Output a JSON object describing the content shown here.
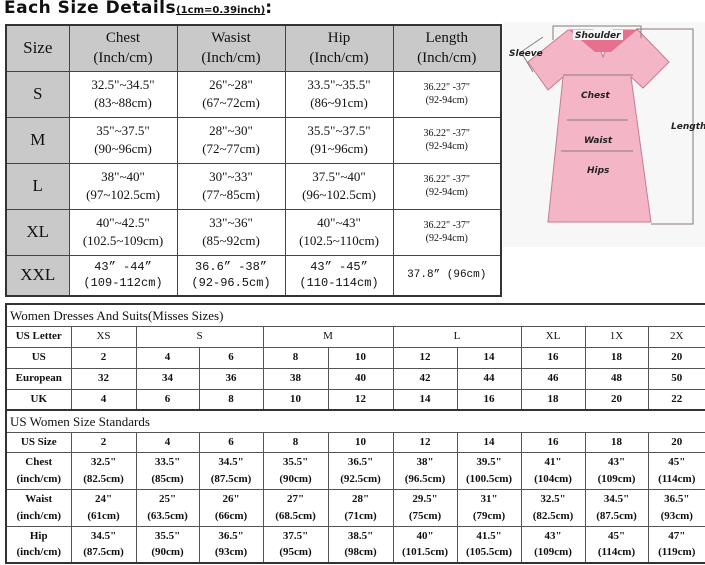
{
  "title": {
    "main": "Each Size Details",
    "sub": "(1cm=0.39inch)",
    "colon": ":"
  },
  "size_table": {
    "headers": [
      "Size",
      "Chest\n(Inch/cm)",
      "Wasist\n(Inch/cm)",
      "Hip\n(Inch/cm)",
      "Length\n(Inch/cm)"
    ],
    "rows": [
      {
        "size": "S",
        "chest": "32.5\"~34.5\"\n(83~88cm)",
        "waist": "26\"~28\"\n(67~72cm)",
        "hip": "33.5\"~35.5\"\n(86~91cm)",
        "length": "36.22\" -37\"\n(92-94cm)"
      },
      {
        "size": "M",
        "chest": "35\"~37.5\"\n(90~96cm)",
        "waist": "28\"~30\"\n(72~77cm)",
        "hip": "35.5\"~37.5\"\n(91~96cm)",
        "length": "36.22\" -37\"\n(92-94cm)"
      },
      {
        "size": "L",
        "chest": "38\"~40\"\n(97~102.5cm)",
        "waist": "30\"~33\"\n(77~85cm)",
        "hip": "37.5\"~40\"\n(96~102.5cm)",
        "length": "36.22\" -37\"\n(92-94cm)"
      },
      {
        "size": "XL",
        "chest": "40\"~42.5\"\n(102.5~109cm)",
        "waist": "33\"~36\"\n(85~92cm)",
        "hip": "40\"~43\"\n(102.5~110cm)",
        "length": "36.22\" -37\"\n(92-94cm)"
      },
      {
        "size": "XXL",
        "chest": "43” -44”\n(109-112cm)",
        "waist": "36.6” -38”\n(92-96.5cm)",
        "hip": "43” -45”\n(110-114cm)",
        "length": "37.8” (96cm)"
      }
    ]
  },
  "diagram": {
    "labels": {
      "shoulder": "Shoulder",
      "sleeve": "Sleeve",
      "chest": "Chest",
      "waist": "Waist",
      "hips": "Hips",
      "length": "Length"
    },
    "dress_color": "#f4b6c6",
    "neck_color": "#e8708f"
  },
  "misses": {
    "title": "Women Dresses And Suits(Misses Sizes)",
    "letter_row": {
      "label": "US Letter",
      "groups": [
        {
          "label": "XS",
          "span": 1
        },
        {
          "label": "S",
          "span": 2
        },
        {
          "label": "M",
          "span": 2
        },
        {
          "label": "L",
          "span": 2
        },
        {
          "label": "XL",
          "span": 1
        },
        {
          "label": "1X",
          "span": 1
        },
        {
          "label": "2X",
          "span": 1
        }
      ]
    },
    "rows": [
      {
        "label": "US",
        "values": [
          "2",
          "4",
          "6",
          "8",
          "10",
          "12",
          "14",
          "16",
          "18",
          "20"
        ]
      },
      {
        "label": "European",
        "values": [
          "32",
          "34",
          "36",
          "38",
          "40",
          "42",
          "44",
          "46",
          "48",
          "50"
        ]
      },
      {
        "label": "UK",
        "values": [
          "4",
          "6",
          "8",
          "10",
          "12",
          "14",
          "16",
          "18",
          "20",
          "22"
        ]
      }
    ]
  },
  "standards": {
    "title": "US Women Size Standards",
    "size_row": {
      "label": "US Size",
      "values": [
        "2",
        "4",
        "6",
        "8",
        "10",
        "12",
        "14",
        "16",
        "18",
        "20"
      ]
    },
    "rows": [
      {
        "label": "Chest\n(inch/cm)",
        "values": [
          "32.5\"\n(82.5cm)",
          "33.5\"\n(85cm)",
          "34.5\"\n(87.5cm)",
          "35.5\"\n(90cm)",
          "36.5\"\n(92.5cm)",
          "38\"\n(96.5cm)",
          "39.5\"\n(100.5cm)",
          "41\"\n(104cm)",
          "43\"\n(109cm)",
          "45\"\n(114cm)"
        ]
      },
      {
        "label": "Waist\n(inch/cm)",
        "values": [
          "24\"\n(61cm)",
          "25\"\n(63.5cm)",
          "26\"\n(66cm)",
          "27\"\n(68.5cm)",
          "28\"\n(71cm)",
          "29.5\"\n(75cm)",
          "31\"\n(79cm)",
          "32.5\"\n(82.5cm)",
          "34.5\"\n(87.5cm)",
          "36.5\"\n(93cm)"
        ]
      },
      {
        "label": "Hip\n(inch/cm)",
        "values": [
          "34.5\"\n(87.5cm)",
          "35.5\"\n(90cm)",
          "36.5\"\n(93cm)",
          "37.5\"\n(95cm)",
          "38.5\"\n(98cm)",
          "40\"\n(101.5cm)",
          "41.5\"\n(105.5cm)",
          "43\"\n(109cm)",
          "45\"\n(114cm)",
          "47\"\n(119cm)"
        ]
      }
    ]
  }
}
